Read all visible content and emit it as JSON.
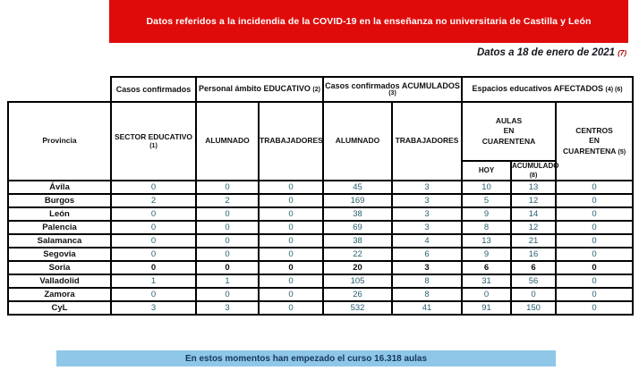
{
  "banner": {
    "text": "Datos referidos a la incidendia de la COVID-19 en la enseñanza no universitaria de Castilla y León"
  },
  "date_line": {
    "text": "Datos a 18 de enero de 2021",
    "note": "(7)"
  },
  "table": {
    "group": {
      "casos": "Casos confirmados",
      "personal": "Personal ámbito EDUCATIVO",
      "personal_note": "(2)",
      "acumulados": "Casos confirmados ACUMULADOS",
      "acumulados_note": "(3)",
      "espacios": "Espacios educativos AFECTADOS",
      "espacios_note": "(4) (6)"
    },
    "headers": {
      "provincia": "Provincia",
      "sector": "SECTOR EDUCATIVO",
      "sector_note": "(1)",
      "alumnado1": "ALUMNADO",
      "trabajadores1": "TRABAJADORES",
      "alumnado2": "ALUMNADO",
      "trabajadores2": "TRABAJADORES",
      "aulas": "AULAS\nEN\nCUARENTENA",
      "hoy": "HOY",
      "acumulado": "ACUMULADO",
      "acumulado_note": "(8)",
      "centros": "CENTROS\nEN\nCUARENTENA",
      "centros_note": "(5)"
    },
    "rows": [
      {
        "province": "Ávila",
        "values": [
          0,
          0,
          0,
          45,
          3,
          10,
          13,
          0
        ],
        "bold": false
      },
      {
        "province": "Burgos",
        "values": [
          2,
          2,
          0,
          169,
          3,
          5,
          12,
          0
        ],
        "bold": false
      },
      {
        "province": "León",
        "values": [
          0,
          0,
          0,
          38,
          3,
          9,
          14,
          0
        ],
        "bold": false
      },
      {
        "province": "Palencia",
        "values": [
          0,
          0,
          0,
          69,
          3,
          8,
          12,
          0
        ],
        "bold": false
      },
      {
        "province": "Salamanca",
        "values": [
          0,
          0,
          0,
          38,
          4,
          13,
          21,
          0
        ],
        "bold": false
      },
      {
        "province": "Segovia",
        "values": [
          0,
          0,
          0,
          22,
          6,
          9,
          16,
          0
        ],
        "bold": false
      },
      {
        "province": "Soria",
        "values": [
          0,
          0,
          0,
          20,
          3,
          6,
          6,
          0
        ],
        "bold": true
      },
      {
        "province": "Valladolid",
        "values": [
          1,
          1,
          0,
          105,
          8,
          31,
          56,
          0
        ],
        "bold": false
      },
      {
        "province": "Zamora",
        "values": [
          0,
          0,
          0,
          26,
          8,
          0,
          0,
          0
        ],
        "bold": false
      },
      {
        "province": "CyL",
        "values": [
          3,
          3,
          0,
          532,
          41,
          91,
          150,
          0
        ],
        "bold": false
      }
    ]
  },
  "footer": {
    "text": "En estos momentos han empezado el curso 16.318 aulas"
  },
  "colors": {
    "banner_red": "#df0b0b",
    "footer_blue": "#8ec7e8",
    "value_teal": "#2a5f6e",
    "text_black": "#111111",
    "note_red": "#b30000",
    "footer_text": "#17365d"
  }
}
